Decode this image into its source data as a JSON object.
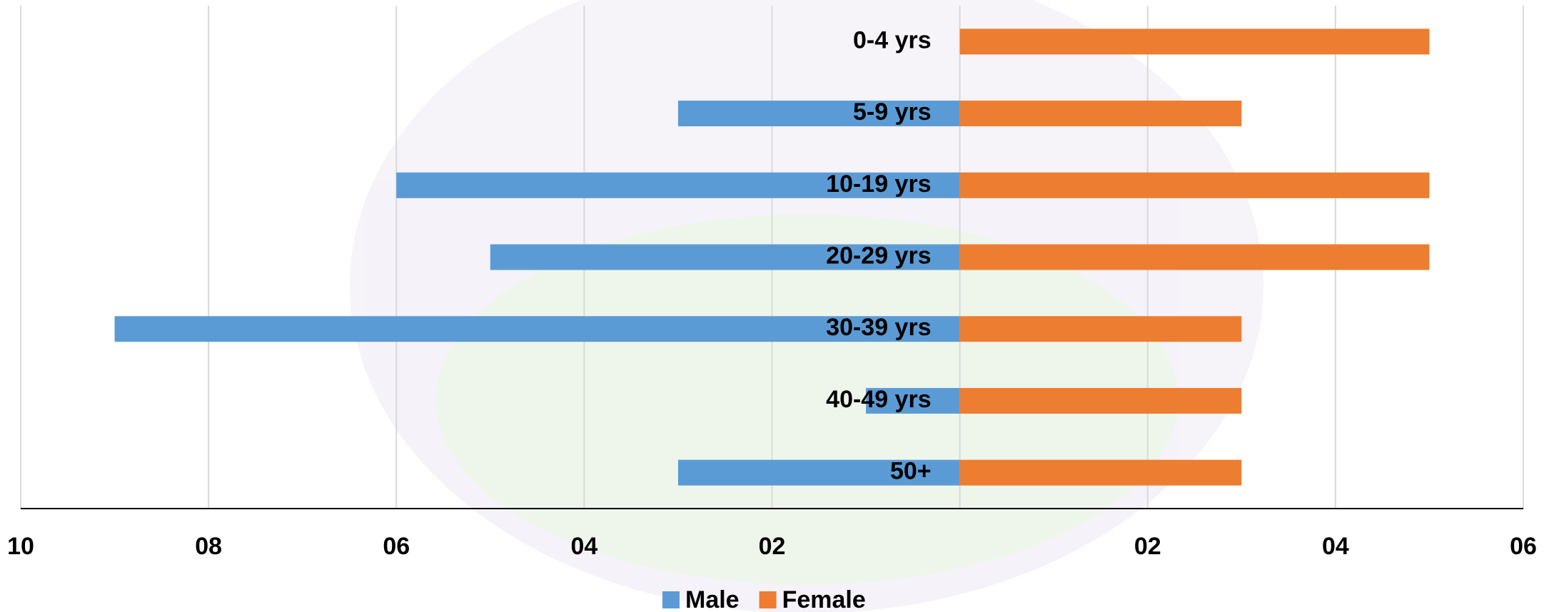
{
  "chart_data": {
    "type": "bar",
    "orientation": "horizontal",
    "categories": [
      "0-4 yrs",
      "5-9 yrs",
      "10-19 yrs",
      "20-29 yrs",
      "30-39 yrs",
      "40-49 yrs",
      "50+"
    ],
    "series": [
      {
        "name": "Male",
        "color": "#5b9bd5",
        "values": [
          0,
          -3,
          -6,
          -5,
          -9,
          -1,
          -3
        ]
      },
      {
        "name": "Female",
        "color": "#ed7d31",
        "values": [
          5,
          3,
          5,
          5,
          3,
          3,
          3
        ]
      }
    ],
    "xlim": [
      -10,
      6
    ],
    "xticks": [
      {
        "value": -10,
        "label": "10"
      },
      {
        "value": -8,
        "label": "08"
      },
      {
        "value": -6,
        "label": "06"
      },
      {
        "value": -4,
        "label": "04"
      },
      {
        "value": -2,
        "label": "02"
      },
      {
        "value": 2,
        "label": "02"
      },
      {
        "value": 4,
        "label": "04"
      },
      {
        "value": 6,
        "label": "06"
      }
    ],
    "grid": true,
    "legend": "bottom"
  }
}
